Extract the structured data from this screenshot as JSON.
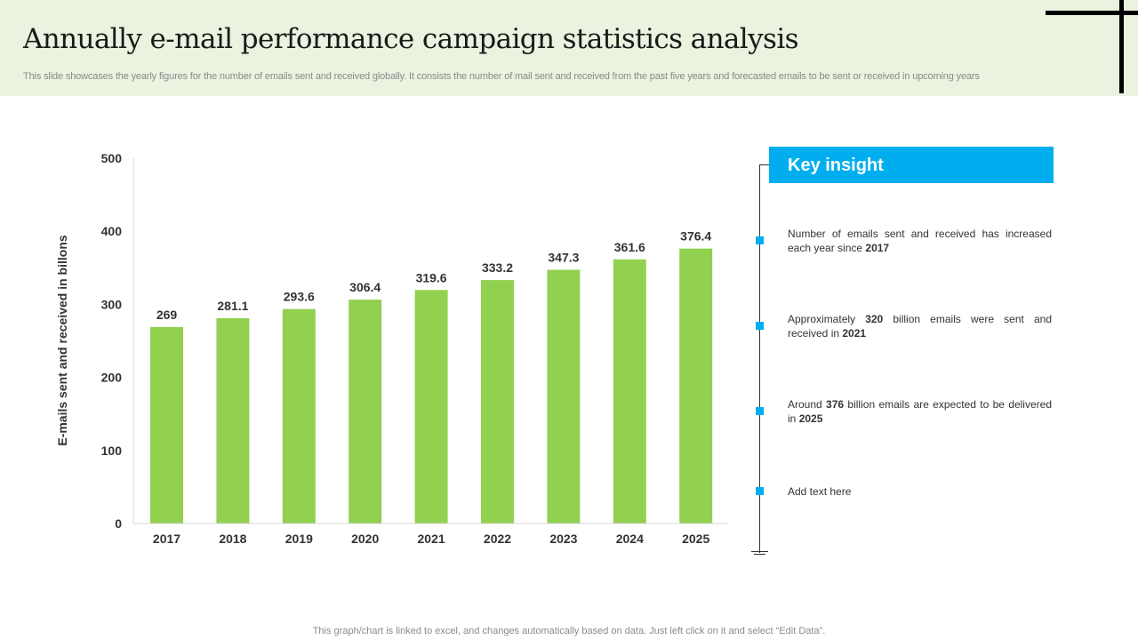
{
  "header": {
    "title": "Annually e-mail performance campaign statistics analysis",
    "subtitle": "This slide showcases the yearly figures for the number of emails sent and received globally. It consists the number of mail sent and received from the past five  years  and forecasted emails to be sent or received in upcoming years"
  },
  "chart_data": {
    "type": "bar",
    "categories": [
      "2017",
      "2018",
      "2019",
      "2020",
      "2021",
      "2022",
      "2023",
      "2024",
      "2025"
    ],
    "values": [
      269,
      281.1,
      293.6,
      306.4,
      319.6,
      333.2,
      347.3,
      361.6,
      376.4
    ],
    "value_labels": [
      "269",
      "281.1",
      "293.6",
      "306.4",
      "319.6",
      "333.2",
      "347.3",
      "361.6",
      "376.4"
    ],
    "ylabel": "E-mails sent and received in billons",
    "xlabel": "",
    "ylim": [
      0,
      500
    ],
    "yticks": [
      "0",
      "100",
      "200",
      "300",
      "400",
      "500"
    ],
    "bar_color": "#92d050",
    "grid": false,
    "legend": "none"
  },
  "insight": {
    "title": "Key insight",
    "accent_color": "#00aeef",
    "items": [
      {
        "parts": [
          {
            "t": "Number of emails sent and received  has increased each year since "
          },
          {
            "t": "2017",
            "b": true
          }
        ]
      },
      {
        "parts": [
          {
            "t": "Approximately "
          },
          {
            "t": "320",
            "b": true
          },
          {
            "t": " billion emails were  sent and received  in "
          },
          {
            "t": "2021",
            "b": true
          }
        ]
      },
      {
        "parts": [
          {
            "t": "Around "
          },
          {
            "t": "376",
            "b": true
          },
          {
            "t": " billion emails are expected to be delivered  in "
          },
          {
            "t": "2025",
            "b": true
          }
        ]
      },
      {
        "parts": [
          {
            "t": "Add text here"
          }
        ]
      }
    ]
  },
  "footer": {
    "note": "This graph/chart is linked to excel,  and changes automatically based on data. Just left click on it and select “Edit Data”."
  }
}
